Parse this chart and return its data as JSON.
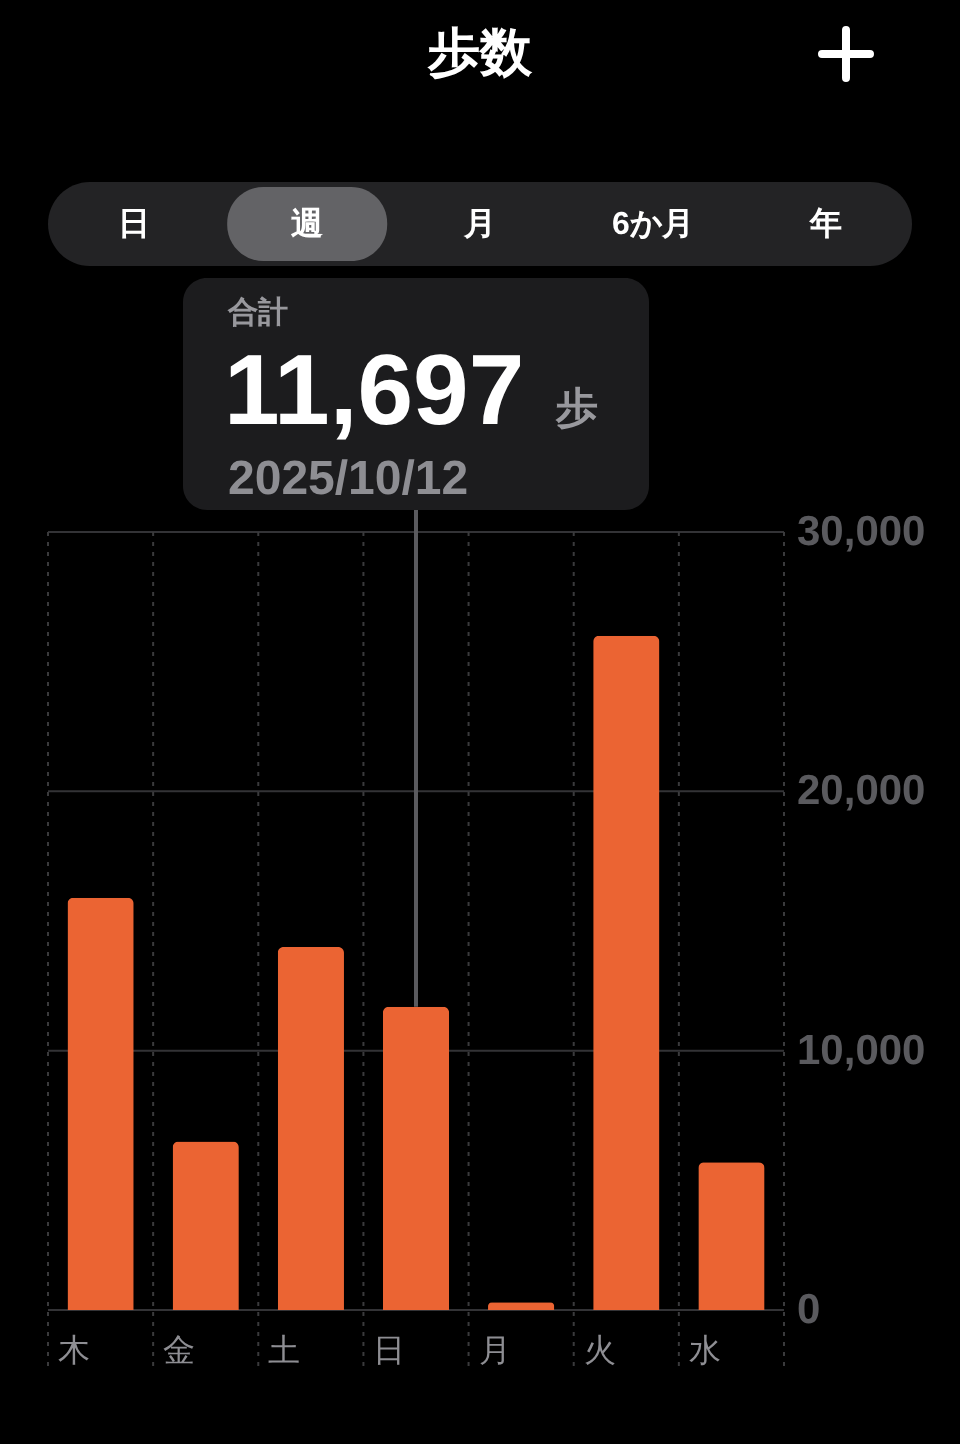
{
  "chart_data": {
    "type": "bar",
    "title": "歩数",
    "categories": [
      "木",
      "金",
      "土",
      "日",
      "月",
      "火",
      "水"
    ],
    "values": [
      15900,
      6500,
      14000,
      11697,
      300,
      26000,
      5700
    ],
    "value_labels": [
      null,
      null,
      null,
      "11,697",
      null,
      null,
      null
    ],
    "color": "#eb6433",
    "ylim": [
      0,
      30000
    ],
    "yticks": [
      0,
      {
        "value": 10000,
        "label": "10,000"
      },
      {
        "value": 20000,
        "label": "20,000"
      },
      {
        "value": 30000,
        "label": "30,000"
      }
    ],
    "grid": true,
    "annotations": [
      "日",
      "週",
      "月",
      "6か月",
      "年",
      "合計",
      "歩",
      "2025/10/12"
    ]
  }
}
